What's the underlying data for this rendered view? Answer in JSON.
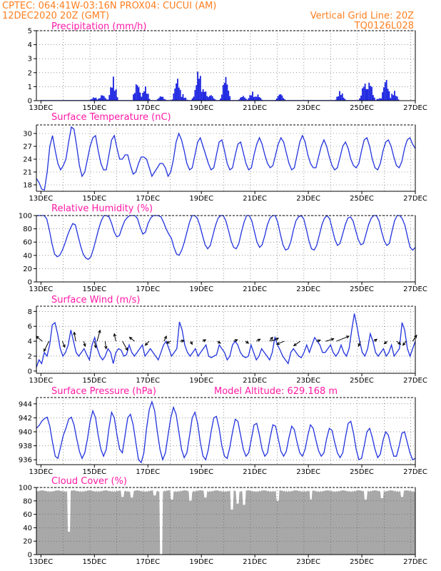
{
  "header": {
    "line1": "CPTEC:   064:41W-03:16N   PROX04: CUCUI (AM)",
    "line2": "12DEC2020  20Z (GMT)",
    "right1": "Vertical Grid Line: 20Z",
    "right2": "TQ0126L028"
  },
  "colors": {
    "header": "#ff7f1f",
    "title": "#ff1aa6",
    "line": "#2233dd",
    "bar": "#1a22e0",
    "cloud": "#a8a8a8",
    "arrow": "#000000"
  },
  "chart_data": [
    {
      "type": "bar",
      "title": "Precipitation (mm/h)",
      "x_ticks": [
        "13DEC",
        "15DEC",
        "17DEC",
        "19DEC",
        "21DEC",
        "23DEC",
        "25DEC",
        "27DEC"
      ],
      "xlim_days": [
        12.83,
        27.0
      ],
      "ylim": [
        0,
        5
      ],
      "y_ticks": [
        0,
        1,
        2,
        3,
        4,
        5
      ],
      "grid": true,
      "events": [
        {
          "day": 15.0,
          "mag": 0.3
        },
        {
          "day": 15.3,
          "mag": 0.5
        },
        {
          "day": 15.7,
          "mag": 1.8
        },
        {
          "day": 16.6,
          "mag": 1.5
        },
        {
          "day": 16.9,
          "mag": 1.1
        },
        {
          "day": 17.5,
          "mag": 0.4
        },
        {
          "day": 18.1,
          "mag": 1.8
        },
        {
          "day": 18.3,
          "mag": 0.5
        },
        {
          "day": 18.8,
          "mag": 0.6
        },
        {
          "day": 18.9,
          "mag": 2.6
        },
        {
          "day": 19.1,
          "mag": 1.0
        },
        {
          "day": 19.35,
          "mag": 0.5
        },
        {
          "day": 19.9,
          "mag": 2.0
        },
        {
          "day": 20.55,
          "mag": 0.4
        },
        {
          "day": 20.9,
          "mag": 0.7
        },
        {
          "day": 21.1,
          "mag": 0.5
        },
        {
          "day": 21.95,
          "mag": 0.6
        },
        {
          "day": 24.2,
          "mag": 0.8
        },
        {
          "day": 25.1,
          "mag": 1.5
        },
        {
          "day": 25.3,
          "mag": 1.6
        },
        {
          "day": 25.65,
          "mag": 0.2
        },
        {
          "day": 25.9,
          "mag": 1.8
        },
        {
          "day": 26.2,
          "mag": 0.8
        }
      ]
    },
    {
      "type": "line",
      "title": "Surface Temperature (nC)",
      "x_ticks": [
        "13DEC",
        "15DEC",
        "17DEC",
        "19DEC",
        "21DEC",
        "23DEC",
        "25DEC",
        "27DEC"
      ],
      "xlim_days": [
        12.83,
        27.0
      ],
      "ylim": [
        16.5,
        32
      ],
      "y_ticks": [
        18,
        21,
        24,
        27,
        30
      ],
      "grid": true,
      "series": [
        {
          "values": [
            19.5,
            18.5,
            17.0,
            16.8,
            21,
            27,
            29.5,
            26,
            23,
            21.5,
            22.5,
            24,
            28,
            31.5,
            31,
            27,
            22.5,
            20,
            21,
            24,
            27,
            29,
            29.5,
            26,
            23,
            21.5,
            21.5,
            25,
            28.5,
            29.5,
            26.5,
            24,
            24,
            25,
            25,
            22.5,
            20.5,
            21,
            23,
            24.5,
            24.5,
            24,
            22,
            20,
            21,
            22,
            23,
            23,
            22,
            20,
            21,
            24,
            28,
            30,
            28.5,
            26,
            23,
            21.5,
            22,
            25,
            28,
            29,
            27,
            25,
            23,
            21.5,
            22,
            25,
            28,
            28.5,
            26,
            23,
            21.5,
            22,
            25,
            27.5,
            28,
            25.5,
            23,
            21.5,
            22,
            25,
            27.5,
            29,
            27.5,
            25,
            23,
            22,
            22.5,
            25,
            27.5,
            29,
            28,
            25.5,
            23,
            21.5,
            22,
            25,
            28,
            29.5,
            28,
            25,
            23,
            22,
            22,
            24.5,
            27,
            28.5,
            27,
            24.5,
            22.5,
            21.5,
            22,
            24.5,
            27,
            28,
            26.5,
            24,
            22.5,
            22,
            23,
            26,
            28.5,
            29,
            27,
            24,
            22,
            21.5,
            23,
            26,
            28,
            28.5,
            27,
            24.5,
            22.5,
            22,
            23.5,
            26.5,
            28.5,
            29,
            27.5,
            26.5
          ]
        }
      ]
    },
    {
      "type": "line",
      "title": "Relative Humidity (%)",
      "x_ticks": [
        "13DEC",
        "15DEC",
        "17DEC",
        "19DEC",
        "21DEC",
        "23DEC",
        "25DEC",
        "27DEC"
      ],
      "xlim_days": [
        12.83,
        27.0
      ],
      "ylim": [
        0,
        100
      ],
      "y_ticks": [
        0,
        20,
        40,
        60,
        80,
        100
      ],
      "grid": true,
      "series": [
        {
          "values": [
            100,
            100,
            100,
            100,
            95,
            78,
            58,
            42,
            38,
            40,
            48,
            58,
            70,
            80,
            88,
            86,
            70,
            55,
            42,
            36,
            34,
            38,
            50,
            65,
            80,
            92,
            100,
            100,
            98,
            88,
            75,
            68,
            70,
            82,
            92,
            97,
            100,
            100,
            100,
            95,
            82,
            72,
            75,
            88,
            96,
            100,
            100,
            100,
            98,
            90,
            80,
            72,
            66,
            52,
            42,
            40,
            48,
            60,
            75,
            90,
            100,
            100,
            96,
            85,
            70,
            56,
            50,
            55,
            70,
            85,
            96,
            100,
            100,
            92,
            78,
            62,
            52,
            50,
            58,
            75,
            90,
            100,
            100,
            92,
            76,
            60,
            52,
            56,
            70,
            86,
            96,
            100,
            100,
            90,
            72,
            56,
            48,
            50,
            60,
            78,
            92,
            98,
            100,
            95,
            80,
            62,
            50,
            48,
            55,
            70,
            86,
            96,
            100,
            95,
            80,
            64,
            55,
            58,
            72,
            86,
            96,
            98,
            92,
            78,
            64,
            56,
            58,
            72,
            86,
            96,
            100,
            100,
            92,
            76,
            62,
            55,
            58,
            76,
            92,
            100,
            100,
            95,
            85,
            68,
            52,
            48,
            52
          ]
        }
      ]
    },
    {
      "type": "line",
      "title": "Surface Wind (m/s)",
      "x_ticks": [
        "13DEC",
        "15DEC",
        "17DEC",
        "19DEC",
        "21DEC",
        "23DEC",
        "25DEC",
        "27DEC"
      ],
      "xlim_days": [
        12.83,
        27.0
      ],
      "ylim": [
        -0.3,
        8.7
      ],
      "y_ticks": [
        0,
        2,
        4,
        6,
        8
      ],
      "grid": true,
      "series": [
        {
          "values": [
            0.5,
            1.5,
            1.0,
            2.5,
            2.0,
            3.5,
            6.2,
            6.5,
            5.0,
            3.0,
            2.0,
            2.5,
            3.5,
            5.5,
            4.0,
            2.5,
            2.0,
            2.5,
            3.0,
            2.2,
            1.5,
            3.5,
            4.5,
            3.0,
            2.0,
            1.5,
            2.0,
            3.0,
            2.5,
            1.0,
            2.5,
            3.0,
            2.8,
            2.0,
            2.2,
            3.5,
            2.5,
            2.0,
            2.5,
            3.0,
            3.5,
            2.0,
            2.5,
            3.0,
            2.5,
            2.0,
            1.5,
            2.5,
            3.5,
            4.0,
            3.0,
            2.0,
            2.5,
            3.0,
            6.6,
            5.5,
            3.5,
            2.5,
            2.0,
            2.5,
            3.0,
            2.0,
            2.5,
            3.0,
            3.5,
            2.0,
            1.8,
            2.0,
            2.2,
            3.5,
            3.0,
            2.5,
            1.5,
            2.0,
            3.5,
            4.0,
            3.5,
            2.5,
            2.0,
            1.8,
            2.0,
            3.5,
            2.5,
            1.5,
            2.0,
            3.0,
            2.5,
            2.0,
            1.5,
            2.5,
            4.5,
            3.5,
            2.8,
            2.0,
            1.5,
            1.0,
            2.5,
            3.0,
            2.5,
            2.0,
            1.8,
            2.5,
            3.5,
            2.5,
            3.5,
            4.5,
            4.0,
            3.5,
            2.5,
            2.5,
            3.0,
            3.5,
            2.5,
            2.0,
            2.5,
            3.5,
            2.5,
            2.0,
            3.0,
            5.5,
            7.7,
            6.0,
            4.0,
            2.5,
            2.0,
            3.0,
            5.0,
            4.0,
            2.5,
            2.0,
            2.5,
            3.0,
            2.0,
            2.5,
            3.5,
            2.0,
            2.5,
            3.0,
            6.5,
            5.5,
            3.0,
            2.0,
            3.0,
            4.0
          ]
        }
      ],
      "vectors": [
        {
          "day": 13.05,
          "u": -1.2,
          "v": 1.0
        },
        {
          "day": 13.3,
          "u": -1.0,
          "v": -2.0
        },
        {
          "day": 13.8,
          "u": 0.5,
          "v": -1.2
        },
        {
          "day": 14.3,
          "u": -0.3,
          "v": 1.8
        },
        {
          "day": 14.6,
          "u": 0.3,
          "v": -1.0
        },
        {
          "day": 15.0,
          "u": 0.3,
          "v": -1.3
        },
        {
          "day": 15.1,
          "u": 0.6,
          "v": 2.2
        },
        {
          "day": 15.4,
          "u": 0.2,
          "v": -1.5
        },
        {
          "day": 15.8,
          "u": -0.3,
          "v": 1.5
        },
        {
          "day": 16.05,
          "u": 1.0,
          "v": -1.8
        },
        {
          "day": 16.5,
          "u": -1.0,
          "v": 0.8
        },
        {
          "day": 17.05,
          "u": -0.8,
          "v": -0.8
        },
        {
          "day": 17.6,
          "u": 0.5,
          "v": 1.0
        },
        {
          "day": 17.85,
          "u": -0.8,
          "v": -0.4
        },
        {
          "day": 18.2,
          "u": 0.8,
          "v": 0.1
        },
        {
          "day": 18.6,
          "u": 0.3,
          "v": -0.6
        },
        {
          "day": 19.05,
          "u": 0.6,
          "v": 0.3
        },
        {
          "day": 19.6,
          "u": 0.6,
          "v": -0.4
        },
        {
          "day": 20.2,
          "u": 0.8,
          "v": 0.3
        },
        {
          "day": 20.65,
          "u": 0.6,
          "v": -0.4
        },
        {
          "day": 21.05,
          "u": 0.8,
          "v": 0.4
        },
        {
          "day": 21.55,
          "u": 0.6,
          "v": 0.8
        },
        {
          "day": 21.6,
          "u": 1.5,
          "v": 0.6
        },
        {
          "day": 22.1,
          "u": -1.5,
          "v": -0.6
        },
        {
          "day": 22.7,
          "u": -1.3,
          "v": -0.9
        },
        {
          "day": 23.3,
          "u": 0.8,
          "v": 0.2
        },
        {
          "day": 23.65,
          "u": 1.6,
          "v": 0.5
        },
        {
          "day": 24.05,
          "u": 2.5,
          "v": 1.0
        },
        {
          "day": 24.95,
          "u": -0.4,
          "v": -1.0
        },
        {
          "day": 25.45,
          "u": 0.6,
          "v": 0.4
        },
        {
          "day": 25.95,
          "u": -0.6,
          "v": -0.5
        },
        {
          "day": 26.3,
          "u": 0.8,
          "v": -0.6
        },
        {
          "day": 26.65,
          "u": -0.6,
          "v": -0.8
        },
        {
          "day": 26.9,
          "u": 0.8,
          "v": 1.2
        }
      ]
    },
    {
      "type": "line",
      "title": "Surface Pressure (hPa)",
      "annotation": "Model Altitude: 629.168 m",
      "x_ticks": [
        "13DEC",
        "15DEC",
        "17DEC",
        "19DEC",
        "21DEC",
        "23DEC",
        "25DEC",
        "27DEC"
      ],
      "xlim_days": [
        12.83,
        27.0
      ],
      "ylim": [
        935.3,
        944.9
      ],
      "y_ticks": [
        936,
        938,
        940,
        942,
        944
      ],
      "grid": true,
      "series": [
        {
          "values": [
            940.5,
            940.9,
            941.5,
            941.9,
            942.1,
            940.8,
            938.5,
            936.5,
            936.2,
            937.8,
            939.5,
            940.5,
            941.8,
            942.1,
            941.0,
            939.0,
            937.2,
            936.2,
            937.0,
            939.0,
            941.5,
            943.0,
            942.0,
            939.5,
            937.5,
            936.5,
            937.5,
            940.5,
            942.8,
            942.0,
            939.5,
            937.5,
            937.0,
            939.5,
            942.0,
            942.5,
            941.0,
            938.5,
            936.0,
            935.6,
            937.0,
            940.5,
            943.2,
            944.3,
            943.0,
            940.0,
            937.5,
            936.0,
            937.0,
            939.5,
            942.0,
            943.5,
            942.5,
            940.0,
            937.5,
            936.3,
            937.0,
            939.5,
            942.0,
            942.8,
            941.2,
            938.5,
            936.5,
            936.0,
            937.5,
            940.0,
            942.0,
            942.2,
            940.5,
            938.0,
            936.5,
            936.2,
            937.8,
            940.0,
            941.8,
            941.5,
            939.5,
            937.5,
            936.5,
            937.0,
            939.0,
            941.0,
            941.2,
            939.5,
            937.5,
            936.5,
            937.0,
            939.2,
            941.0,
            940.8,
            939.0,
            937.2,
            936.5,
            937.2,
            939.2,
            940.8,
            940.3,
            938.5,
            937.0,
            936.5,
            937.5,
            939.5,
            941.0,
            940.5,
            938.8,
            937.3,
            936.5,
            937.0,
            939.0,
            940.5,
            940.2,
            938.5,
            937.0,
            936.3,
            937.0,
            939.2,
            941.2,
            941.5,
            939.8,
            937.5,
            936.0,
            936.2,
            938.0,
            940.0,
            940.5,
            939.2,
            937.5,
            936.3,
            936.8,
            938.8,
            940.0,
            939.5,
            937.8,
            936.5,
            936.5,
            938.0,
            939.8,
            940.0,
            938.5,
            937.0,
            936.0,
            936.2
          ]
        }
      ]
    },
    {
      "type": "area",
      "title": "Cloud Cover (%)",
      "x_ticks": [
        "13DEC",
        "15DEC",
        "17DEC",
        "19DEC",
        "21DEC",
        "23DEC",
        "25DEC",
        "27DEC"
      ],
      "xlim_days": [
        12.83,
        27.0
      ],
      "ylim": [
        0,
        100
      ],
      "y_ticks": [
        0,
        20,
        40,
        60,
        80,
        100
      ],
      "grid": true,
      "baseline": 96,
      "dips": [
        {
          "day": 14.05,
          "to": 34
        },
        {
          "day": 16.05,
          "to": 86
        },
        {
          "day": 16.4,
          "to": 85
        },
        {
          "day": 17.25,
          "to": 88
        },
        {
          "day": 17.5,
          "to": 0
        },
        {
          "day": 17.9,
          "to": 82
        },
        {
          "day": 18.6,
          "to": 80
        },
        {
          "day": 19.15,
          "to": 85
        },
        {
          "day": 20.15,
          "to": 67
        },
        {
          "day": 20.35,
          "to": 76
        },
        {
          "day": 20.6,
          "to": 74
        },
        {
          "day": 21.85,
          "to": 80
        },
        {
          "day": 23.1,
          "to": 82
        },
        {
          "day": 25.15,
          "to": 82
        },
        {
          "day": 25.75,
          "to": 84
        },
        {
          "day": 26.5,
          "to": 86
        }
      ]
    }
  ]
}
